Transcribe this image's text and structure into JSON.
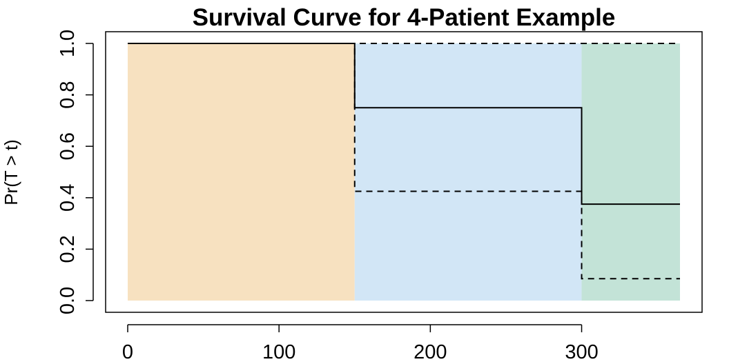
{
  "chart_data": {
    "type": "line",
    "title": "Survival Curve for 4-Patient Example",
    "xlabel": "",
    "ylabel": "Pr(T > t)",
    "xlim": [
      0,
      365
    ],
    "ylim": [
      0,
      1
    ],
    "x_ticks": [
      0,
      100,
      200,
      300
    ],
    "y_ticks": [
      "0.0",
      "0.2",
      "0.4",
      "0.6",
      "0.8",
      "1.0"
    ],
    "grid": false,
    "legend": "none",
    "shaded_regions": [
      {
        "x_start": 0,
        "x_end": 150,
        "color": "#F7E1C0"
      },
      {
        "x_start": 150,
        "x_end": 300,
        "color": "#D2E6F6"
      },
      {
        "x_start": 300,
        "x_end": 365,
        "color": "#C3E3D7"
      }
    ],
    "series": [
      {
        "style": "solid",
        "color": "#000000",
        "points": [
          [
            0,
            1.0
          ],
          [
            150,
            1.0
          ],
          [
            150,
            0.75
          ],
          [
            300,
            0.75
          ],
          [
            300,
            0.375
          ],
          [
            365,
            0.375
          ]
        ]
      },
      {
        "style": "dashed",
        "color": "#000000",
        "points": [
          [
            0,
            1.0
          ],
          [
            365,
            1.0
          ]
        ]
      },
      {
        "style": "dashed",
        "color": "#000000",
        "points": [
          [
            0,
            1.0
          ],
          [
            150,
            1.0
          ],
          [
            150,
            0.425
          ],
          [
            300,
            0.425
          ],
          [
            300,
            0.085
          ],
          [
            365,
            0.085
          ]
        ]
      }
    ]
  }
}
